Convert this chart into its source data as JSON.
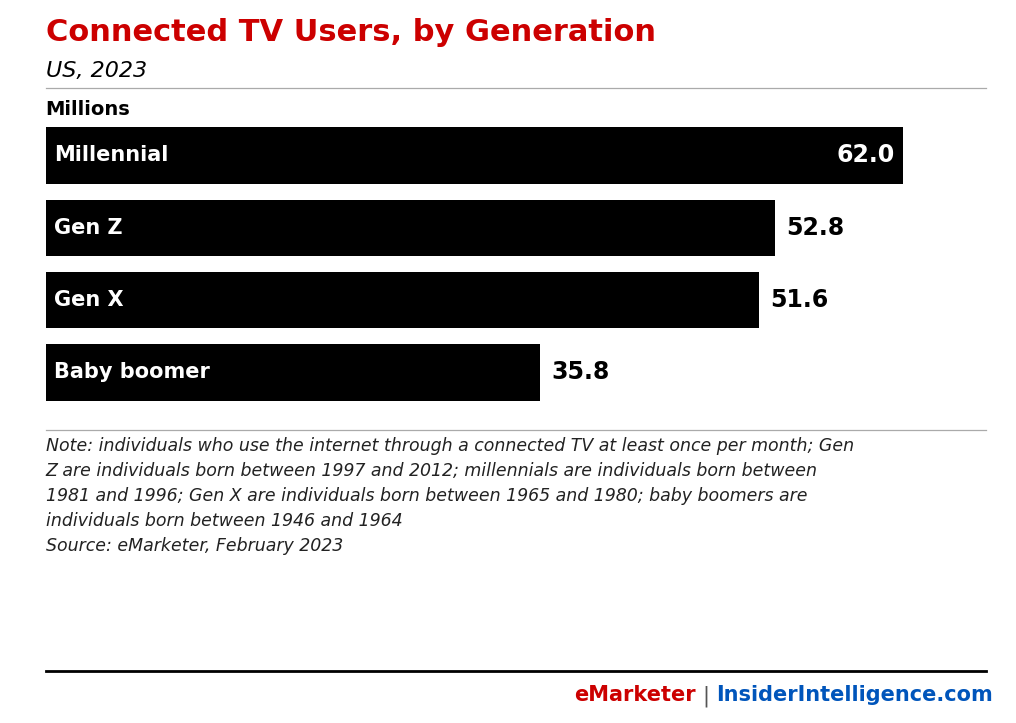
{
  "title": "Connected TV Users, by Generation",
  "subtitle": "US, 2023",
  "ylabel": "Millions",
  "categories": [
    "Millennial",
    "Gen Z",
    "Gen X",
    "Baby boomer"
  ],
  "values": [
    62.0,
    52.8,
    51.6,
    35.8
  ],
  "bar_color": "#000000",
  "label_color_white": "#ffffff",
  "label_color_black": "#000000",
  "title_color": "#cc0000",
  "background_color": "#ffffff",
  "xlim_max": 68,
  "note_line1": "Note: individuals who use the internet through a connected TV at least once per month; Gen",
  "note_line2": "Z are individuals born between 1997 and 2012; millennials are individuals born between",
  "note_line3": "1981 and 1996; Gen X are individuals born between 1965 and 1980; baby boomers are",
  "note_line4": "individuals born between 1946 and 1964",
  "note_line5": "Source: eMarketer, February 2023",
  "footer_left": "eMarketer",
  "footer_sep": "|",
  "footer_right": "InsiderIntelligence.com",
  "footer_color_left": "#cc0000",
  "footer_color_right": "#0055bb",
  "title_fontsize": 22,
  "subtitle_fontsize": 16,
  "ylabel_fontsize": 14,
  "bar_label_fontsize": 15,
  "value_fontsize": 17,
  "note_fontsize": 12.5,
  "footer_fontsize": 15
}
